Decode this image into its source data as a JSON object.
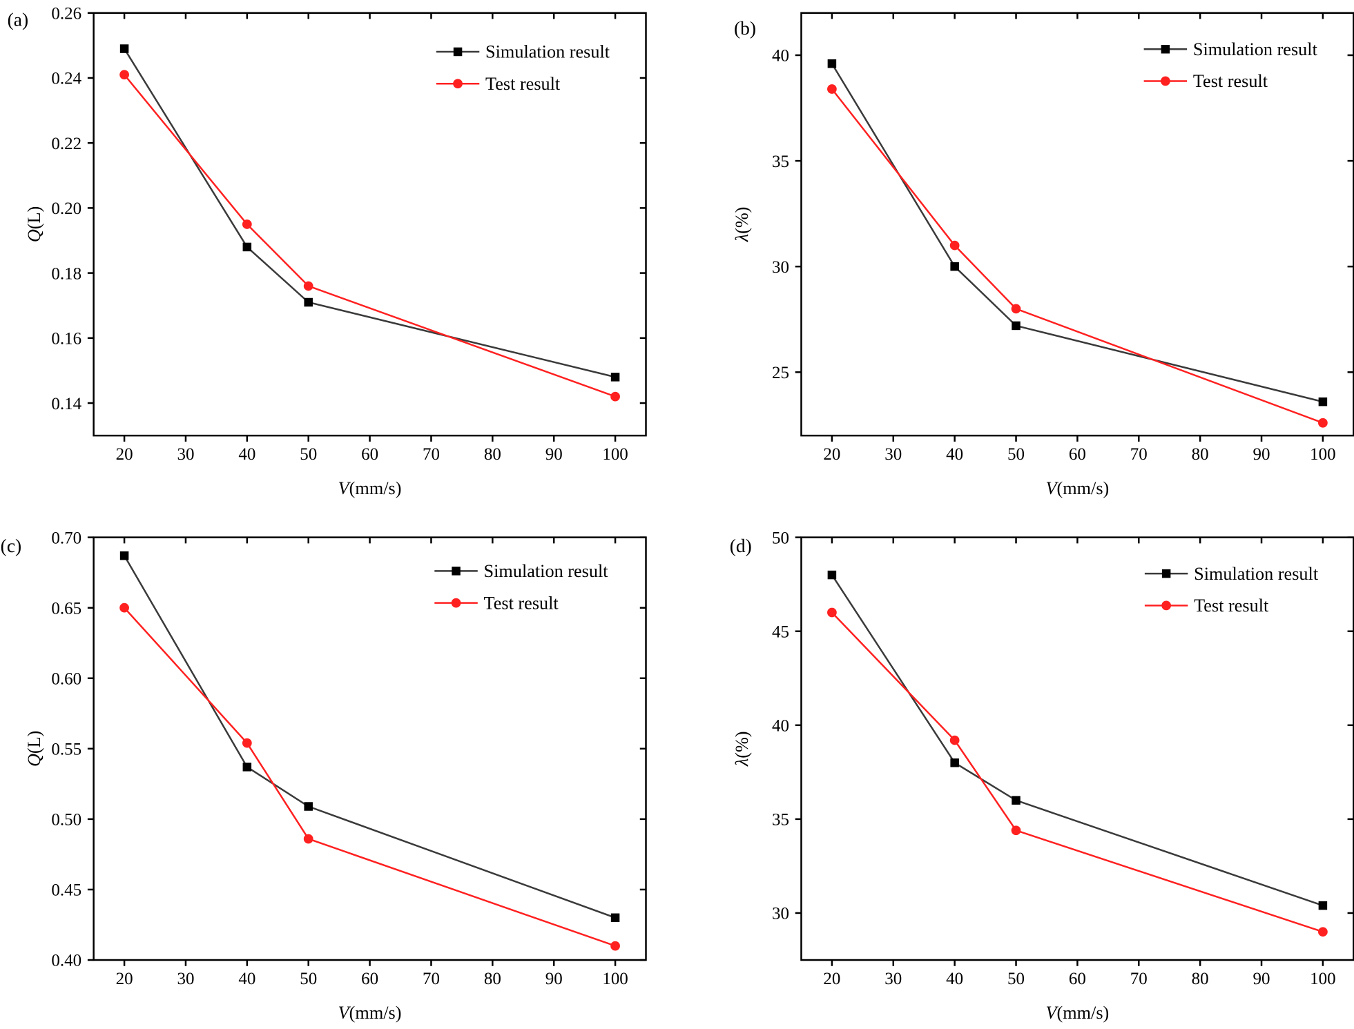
{
  "colors": {
    "simulation": "#3a3a3a",
    "test": "#ff2020",
    "axis": "#000000"
  },
  "chart_data": [
    {
      "type": "line",
      "panel_label": "(a)",
      "xlabel_italic": "V",
      "xlabel_rest": "(mm/s)",
      "ylabel_italic": "Q",
      "ylabel_rest": "(L)",
      "xlim": [
        15,
        105
      ],
      "ylim": [
        0.13,
        0.26
      ],
      "xticks": [
        20,
        30,
        40,
        50,
        60,
        70,
        80,
        90,
        100
      ],
      "yticks": [
        0.14,
        0.16,
        0.18,
        0.2,
        0.22,
        0.24,
        0.26
      ],
      "ydecimals": 2,
      "legend": "top-right",
      "grid": false,
      "x": [
        20,
        40,
        50,
        100
      ],
      "series": [
        {
          "name": "Simulation result",
          "marker": "square",
          "values": [
            0.249,
            0.188,
            0.171,
            0.148
          ]
        },
        {
          "name": "Test result",
          "marker": "circle",
          "values": [
            0.241,
            0.195,
            0.176,
            0.142
          ]
        }
      ]
    },
    {
      "type": "line",
      "panel_label": "(b)",
      "xlabel_italic": "V",
      "xlabel_rest": "(mm/s)",
      "ylabel_italic": "λ",
      "ylabel_rest": "(%)",
      "xlim": [
        15,
        105
      ],
      "ylim": [
        22,
        42
      ],
      "xticks": [
        20,
        30,
        40,
        50,
        60,
        70,
        80,
        90,
        100
      ],
      "yticks": [
        25,
        30,
        35,
        40
      ],
      "ydecimals": 0,
      "legend": "top-right",
      "grid": false,
      "x": [
        20,
        40,
        50,
        100
      ],
      "series": [
        {
          "name": "Simulation result",
          "marker": "square",
          "values": [
            39.6,
            30.0,
            27.2,
            23.6
          ]
        },
        {
          "name": "Test result",
          "marker": "circle",
          "values": [
            38.4,
            31.0,
            28.0,
            22.6
          ]
        }
      ]
    },
    {
      "type": "line",
      "panel_label": "(c)",
      "xlabel_italic": "V",
      "xlabel_rest": "(mm/s)",
      "ylabel_italic": "Q",
      "ylabel_rest": "(L)",
      "xlim": [
        15,
        105
      ],
      "ylim": [
        0.4,
        0.7
      ],
      "xticks": [
        20,
        30,
        40,
        50,
        60,
        70,
        80,
        90,
        100
      ],
      "yticks": [
        0.4,
        0.45,
        0.5,
        0.55,
        0.6,
        0.65,
        0.7
      ],
      "ydecimals": 2,
      "legend": "top-right",
      "grid": false,
      "x": [
        20,
        40,
        50,
        100
      ],
      "series": [
        {
          "name": "Simulation result",
          "marker": "square",
          "values": [
            0.687,
            0.537,
            0.509,
            0.43
          ]
        },
        {
          "name": "Test result",
          "marker": "circle",
          "values": [
            0.65,
            0.554,
            0.486,
            0.41
          ]
        }
      ]
    },
    {
      "type": "line",
      "panel_label": "(d)",
      "xlabel_italic": "V",
      "xlabel_rest": "(mm/s)",
      "ylabel_italic": "λ",
      "ylabel_rest": "(%)",
      "xlim": [
        15,
        105
      ],
      "ylim": [
        27.5,
        50
      ],
      "xticks": [
        20,
        30,
        40,
        50,
        60,
        70,
        80,
        90,
        100
      ],
      "yticks": [
        30,
        35,
        40,
        45,
        50
      ],
      "ydecimals": 0,
      "legend": "top-right",
      "grid": false,
      "x": [
        20,
        40,
        50,
        100
      ],
      "series": [
        {
          "name": "Simulation result",
          "marker": "square",
          "values": [
            48.0,
            38.0,
            36.0,
            30.4
          ]
        },
        {
          "name": "Test result",
          "marker": "circle",
          "values": [
            46.0,
            39.2,
            34.4,
            29.0
          ]
        }
      ]
    }
  ]
}
